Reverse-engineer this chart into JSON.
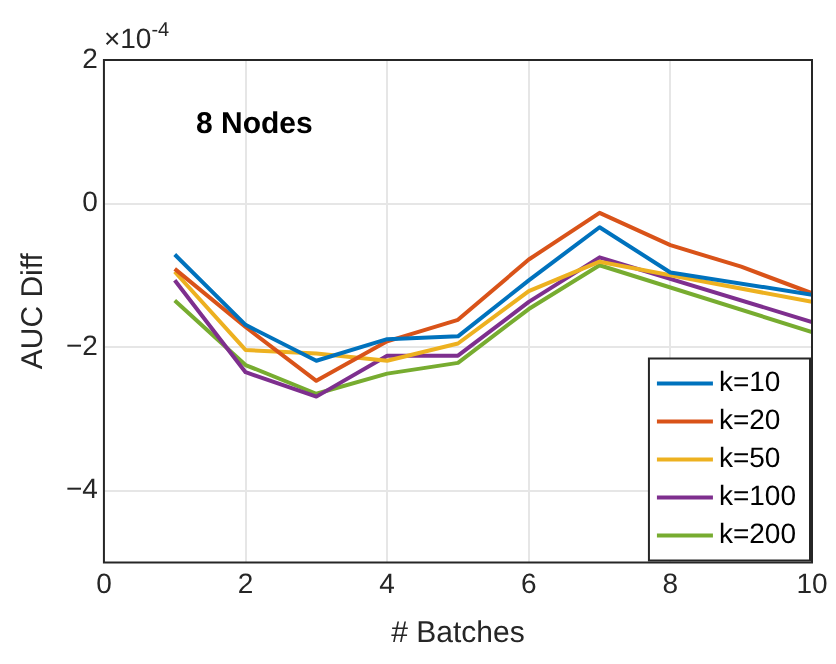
{
  "chart_data": {
    "type": "line",
    "title": "8 Nodes",
    "xlabel": "# Batches",
    "ylabel": "AUC Diff",
    "annotations": [
      "×10$^{-4}$"
    ],
    "x": [
      1,
      2,
      3,
      4,
      5,
      6,
      7,
      8,
      9,
      10
    ],
    "series": [
      {
        "name": "k=10",
        "color": "#0072bd",
        "values": [
          -0.71,
          -1.69,
          -2.19,
          -1.89,
          -1.85,
          -1.07,
          -0.33,
          -0.96,
          null,
          -1.27
        ]
      },
      {
        "name": "k=20",
        "color": "#d95319",
        "values": [
          -0.91,
          -1.72,
          -2.47,
          -1.92,
          -1.62,
          -0.78,
          -0.13,
          -0.58,
          -0.88,
          -1.25
        ]
      },
      {
        "name": "k=50",
        "color": "#edb120",
        "values": [
          -0.95,
          -2.04,
          -2.09,
          -2.19,
          -1.95,
          -1.22,
          -0.81,
          -1.0,
          null,
          -1.37
        ]
      },
      {
        "name": "k=100",
        "color": "#7e2f8e",
        "values": [
          -1.07,
          -2.35,
          -2.69,
          -2.12,
          -2.12,
          -1.37,
          -0.75,
          null,
          null,
          -1.65
        ]
      },
      {
        "name": "k=200",
        "color": "#77ac30",
        "values": [
          -1.35,
          -2.25,
          -2.65,
          -2.37,
          -2.22,
          -1.47,
          -0.86,
          null,
          null,
          -1.79
        ]
      }
    ],
    "xlim": [
      0,
      10
    ],
    "xticks": [
      0,
      2,
      4,
      6,
      8,
      10
    ],
    "ylim": [
      -5,
      2
    ],
    "yticks": [
      -4,
      -2,
      0,
      2
    ],
    "grid": true,
    "legend": "bottom right",
    "marker": "none",
    "line_style": "solid"
  }
}
